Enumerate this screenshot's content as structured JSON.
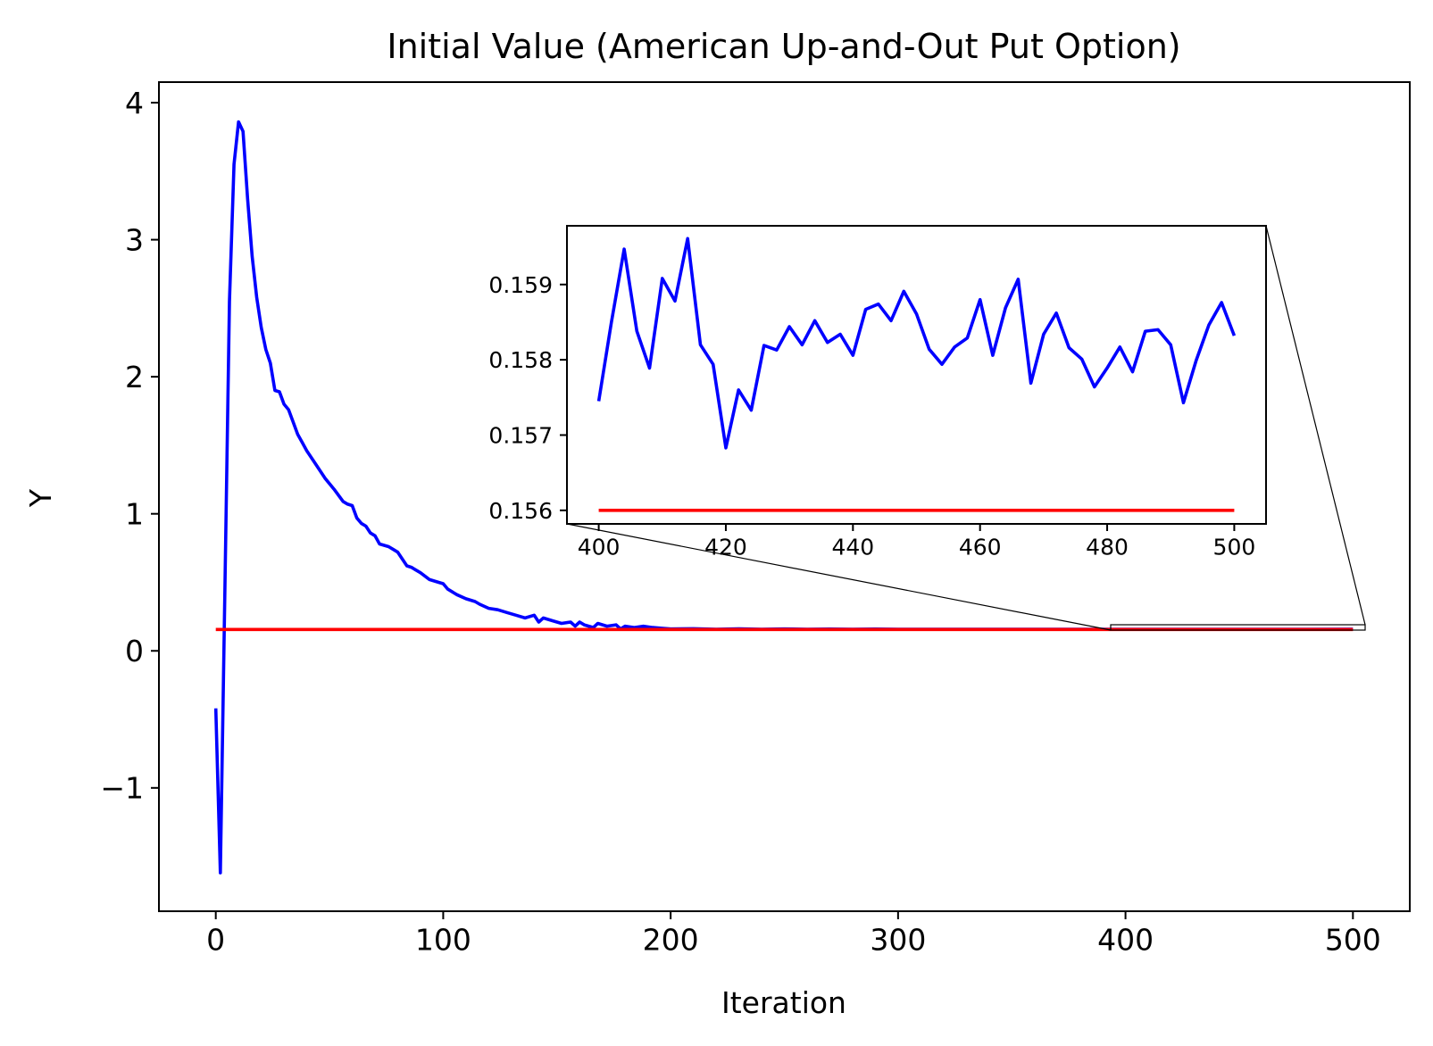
{
  "chart_data": [
    {
      "type": "line",
      "title": "Initial Value (American Up-and-Out Put Option)",
      "xlabel": "Iteration",
      "ylabel": "Y",
      "xlim": [
        -25,
        525
      ],
      "ylim": [
        -1.9,
        4.15
      ],
      "xticks": [
        0,
        100,
        200,
        300,
        400,
        500
      ],
      "xtick_labels": [
        "0",
        "100",
        "200",
        "300",
        "400",
        "500"
      ],
      "yticks": [
        -1,
        0,
        1,
        2,
        3,
        4
      ],
      "ytick_labels": [
        "−1",
        "0",
        "1",
        "2",
        "3",
        "4"
      ],
      "grid": false,
      "series": [
        {
          "color": "#0000ff",
          "x": [
            0,
            2,
            4,
            6,
            8,
            10,
            12,
            14,
            16,
            18,
            20,
            22,
            24,
            26,
            28,
            30,
            32,
            34,
            36,
            38,
            40,
            44,
            48,
            52,
            56,
            58,
            60,
            62,
            64,
            66,
            68,
            70,
            72,
            74,
            76,
            78,
            80,
            82,
            84,
            86,
            88,
            90,
            94,
            98,
            100,
            102,
            104,
            106,
            110,
            114,
            116,
            120,
            124,
            128,
            132,
            136,
            140,
            142,
            144,
            148,
            152,
            156,
            158,
            160,
            162,
            166,
            168,
            172,
            176,
            178,
            180,
            184,
            188,
            192,
            196,
            200,
            210,
            220,
            230,
            240,
            250,
            260,
            270,
            280,
            290,
            300,
            320,
            340,
            360,
            380,
            400,
            420,
            440,
            460,
            480,
            500
          ],
          "y": [
            -0.42,
            -1.62,
            0.45,
            2.55,
            3.55,
            3.86,
            3.79,
            3.3,
            2.88,
            2.58,
            2.36,
            2.2,
            2.1,
            1.9,
            1.89,
            1.8,
            1.76,
            1.67,
            1.58,
            1.52,
            1.46,
            1.36,
            1.26,
            1.18,
            1.09,
            1.07,
            1.06,
            0.97,
            0.93,
            0.91,
            0.86,
            0.84,
            0.78,
            0.77,
            0.76,
            0.74,
            0.72,
            0.67,
            0.62,
            0.61,
            0.59,
            0.57,
            0.52,
            0.5,
            0.49,
            0.45,
            0.43,
            0.41,
            0.38,
            0.36,
            0.34,
            0.31,
            0.3,
            0.28,
            0.26,
            0.24,
            0.26,
            0.21,
            0.24,
            0.22,
            0.2,
            0.21,
            0.18,
            0.21,
            0.19,
            0.17,
            0.2,
            0.18,
            0.19,
            0.16,
            0.18,
            0.17,
            0.18,
            0.17,
            0.165,
            0.16,
            0.162,
            0.158,
            0.161,
            0.158,
            0.16,
            0.158,
            0.159,
            0.158,
            0.159,
            0.158,
            0.158,
            0.158,
            0.158,
            0.158,
            0.1575,
            0.158,
            0.1582,
            0.158,
            0.158,
            0.1583
          ]
        },
        {
          "color": "#ff0000",
          "x": [
            0,
            500
          ],
          "y": [
            0.156,
            0.156
          ]
        }
      ]
    },
    {
      "type": "line",
      "title": "",
      "xlabel": "",
      "ylabel": "",
      "xlim": [
        395,
        505
      ],
      "ylim": [
        0.15582,
        0.15978
      ],
      "xticks": [
        400,
        420,
        440,
        460,
        480,
        500
      ],
      "xtick_labels": [
        "400",
        "420",
        "440",
        "460",
        "480",
        "500"
      ],
      "yticks": [
        0.156,
        0.157,
        0.158,
        0.159
      ],
      "ytick_labels": [
        "0.156",
        "0.157",
        "0.158",
        "0.159"
      ],
      "grid": false,
      "series": [
        {
          "color": "#0000ff",
          "x": [
            400,
            402,
            404,
            406,
            408,
            410,
            412,
            414,
            416,
            418,
            420,
            422,
            424,
            426,
            428,
            430,
            432,
            434,
            436,
            438,
            440,
            442,
            444,
            446,
            448,
            450,
            452,
            454,
            456,
            458,
            460,
            462,
            464,
            466,
            468,
            470,
            472,
            474,
            476,
            478,
            480,
            482,
            484,
            486,
            488,
            490,
            492,
            494,
            496,
            498,
            500
          ],
          "y": [
            0.15745,
            0.1585,
            0.15947,
            0.15838,
            0.15789,
            0.15908,
            0.15878,
            0.15961,
            0.1582,
            0.15794,
            0.15683,
            0.1576,
            0.15733,
            0.15819,
            0.15813,
            0.15844,
            0.1582,
            0.15852,
            0.15823,
            0.15834,
            0.15806,
            0.15867,
            0.15874,
            0.15852,
            0.15891,
            0.15861,
            0.15814,
            0.15794,
            0.15817,
            0.15829,
            0.1588,
            0.15806,
            0.15869,
            0.15907,
            0.15769,
            0.15834,
            0.15862,
            0.15816,
            0.15801,
            0.15764,
            0.15789,
            0.15817,
            0.15784,
            0.15838,
            0.1584,
            0.1582,
            0.15743,
            0.15799,
            0.15846,
            0.15876,
            0.15832
          ]
        },
        {
          "color": "#ff0000",
          "x": [
            400,
            500
          ],
          "y": [
            0.156,
            0.156
          ]
        }
      ]
    }
  ]
}
